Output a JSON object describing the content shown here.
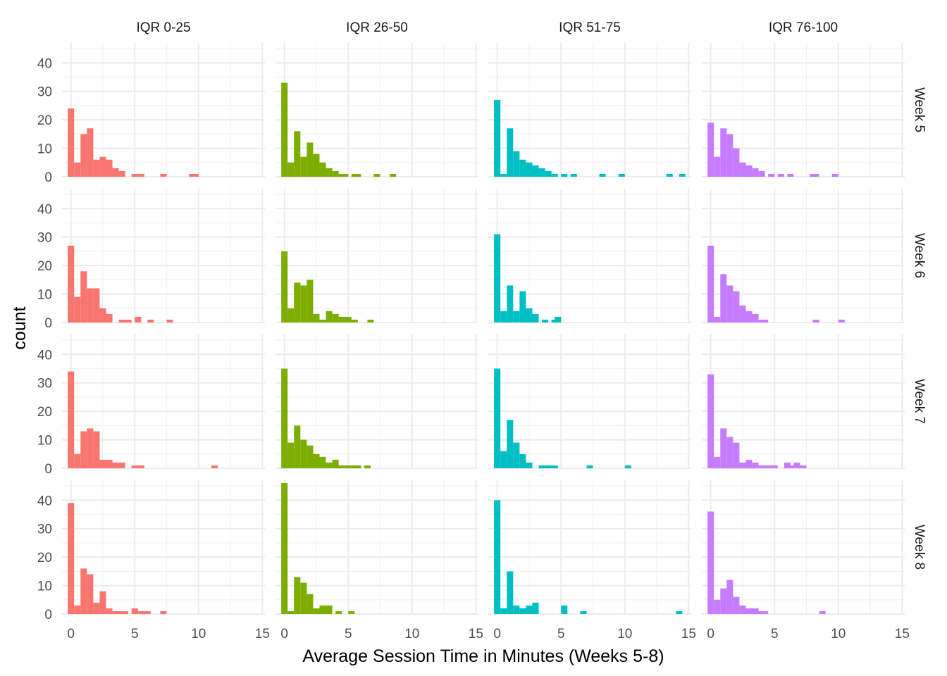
{
  "chart_data": {
    "type": "bar",
    "xlabel": "Average Session Time in Minutes (Weeks 5-8)",
    "ylabel": "count",
    "xlim": [
      -0.7,
      15.2
    ],
    "ylim": [
      0,
      47
    ],
    "x_ticks": [
      0,
      5,
      10,
      15
    ],
    "y_ticks": [
      0,
      10,
      20,
      30,
      40
    ],
    "bin_width": 0.5,
    "grid": true,
    "columns": [
      "IQR 0-25",
      "IQR 26-50",
      "IQR 51-75",
      "IQR 76-100"
    ],
    "rows": [
      "Week 5",
      "Week 6",
      "Week 7",
      "Week 8"
    ],
    "colors": [
      "#F8766D",
      "#7CAE00",
      "#00BFC4",
      "#C77CFF"
    ],
    "panels": [
      [
        {
          "counts": [
            24,
            5,
            15,
            17,
            6,
            7,
            6,
            3,
            2,
            0,
            0,
            0,
            0,
            0,
            0,
            0,
            0,
            0,
            0,
            1,
            0,
            0,
            0,
            0,
            0,
            0,
            0,
            0,
            0,
            0,
            0,
            0,
            0,
            0,
            0,
            0,
            0,
            0,
            0,
            0
          ]
        },
        {
          "counts": [
            33,
            5,
            16,
            7,
            12,
            8,
            5,
            3,
            2,
            0,
            0,
            1,
            0,
            0,
            0,
            0,
            0,
            1,
            0,
            0,
            0,
            0,
            0,
            0,
            0,
            0,
            0,
            0,
            0,
            0
          ]
        },
        {
          "counts": [
            27,
            1,
            17,
            9,
            6,
            5,
            4,
            3,
            2,
            1,
            0,
            0,
            1,
            0,
            0,
            0,
            0,
            0,
            0,
            0,
            0,
            0,
            0,
            0,
            0,
            0,
            0,
            1,
            0,
            1
          ]
        },
        {
          "counts": [
            19,
            7,
            17,
            15,
            10,
            5,
            4,
            3,
            2,
            0,
            0,
            1,
            0,
            0,
            0,
            0,
            1,
            0,
            0,
            0,
            0,
            0,
            0,
            0,
            0,
            0,
            0,
            0,
            0,
            0,
            0,
            0,
            0,
            0,
            0,
            0,
            0,
            0,
            0,
            0
          ]
        }
      ],
      [
        {
          "counts": [
            27,
            9,
            18,
            12,
            12,
            5,
            3,
            0,
            0,
            1,
            0,
            0,
            0,
            0,
            0,
            0,
            0,
            0,
            0,
            0,
            0,
            0,
            0,
            0,
            0,
            0,
            0,
            0,
            0,
            0,
            0,
            0,
            0,
            0,
            0,
            0,
            0,
            0,
            0,
            0
          ]
        },
        {
          "counts": [
            25,
            5,
            14,
            13,
            15,
            3,
            1,
            4,
            3,
            2,
            2,
            1,
            0,
            0,
            0,
            0,
            0,
            0,
            0,
            0,
            0,
            0,
            0,
            0,
            0,
            0,
            0,
            0,
            0,
            0
          ]
        },
        {
          "counts": [
            31,
            4,
            13,
            4,
            11,
            5,
            3,
            0,
            0,
            1,
            0,
            0,
            0,
            0,
            0,
            0,
            0,
            0,
            0,
            0,
            0,
            0,
            0,
            0,
            0,
            0,
            0,
            0,
            0,
            0
          ]
        },
        {
          "counts": [
            27,
            2,
            17,
            13,
            11,
            6,
            4,
            3,
            1,
            0,
            0,
            0,
            0,
            0,
            0,
            0,
            0,
            0,
            0,
            0,
            0,
            0,
            0,
            0,
            0,
            0,
            0,
            0,
            0,
            0,
            0,
            0,
            0,
            0,
            0,
            0,
            0,
            0,
            0,
            0
          ]
        }
      ],
      [
        {
          "counts": [
            34,
            5,
            13,
            14,
            13,
            3,
            3,
            2,
            2,
            0,
            0,
            0,
            0,
            0,
            0,
            0,
            0,
            0,
            0,
            0,
            0,
            0,
            0,
            0,
            0,
            0,
            0,
            0,
            0,
            0,
            0,
            0,
            0,
            0,
            0,
            0,
            0,
            0,
            0,
            0
          ]
        },
        {
          "counts": [
            35,
            9,
            15,
            10,
            8,
            5,
            4,
            2,
            3,
            1,
            1,
            1,
            0,
            1,
            0,
            0,
            0,
            0,
            0,
            0,
            0,
            0,
            0,
            0,
            0,
            0,
            0,
            0,
            0,
            0
          ]
        },
        {
          "counts": [
            35,
            6,
            17,
            9,
            5,
            2,
            0,
            0,
            1,
            1,
            0,
            0,
            0,
            0,
            0,
            0,
            0,
            0,
            0,
            0,
            0,
            0,
            0,
            0,
            0,
            0,
            0,
            0,
            0,
            0
          ]
        },
        {
          "counts": [
            33,
            4,
            14,
            11,
            9,
            2,
            3,
            2,
            1,
            1,
            1,
            0,
            2,
            1,
            0,
            0,
            0,
            0,
            0,
            0,
            0,
            0,
            0,
            0,
            0,
            0,
            0,
            0,
            0,
            0,
            0,
            0,
            0,
            0,
            0,
            0,
            0,
            0,
            0,
            0
          ]
        }
      ],
      [
        {
          "counts": [
            39,
            3,
            16,
            14,
            4,
            8,
            2,
            1,
            0,
            0,
            2,
            1,
            1,
            0,
            0,
            0,
            0,
            0,
            0,
            0,
            0,
            0,
            0,
            0,
            0,
            0,
            0,
            0,
            0,
            0,
            0,
            0,
            0,
            0,
            0,
            0,
            0,
            0,
            0,
            0
          ]
        },
        {
          "counts": [
            46,
            1,
            13,
            11,
            7,
            2,
            3,
            3,
            0,
            0,
            0,
            0,
            0,
            0,
            0,
            0,
            0,
            0,
            0,
            0,
            0,
            0,
            0,
            0,
            0,
            0,
            0,
            0,
            0,
            0
          ]
        },
        {
          "counts": [
            40,
            2,
            15,
            3,
            2,
            3,
            4,
            0,
            0,
            0,
            0,
            0,
            0,
            0,
            0,
            0,
            0,
            0,
            0,
            0,
            0,
            0,
            0,
            0,
            0,
            0,
            0,
            0,
            0,
            0
          ]
        },
        {
          "counts": [
            36,
            5,
            9,
            12,
            6,
            3,
            2,
            2,
            0,
            0,
            0,
            0,
            0,
            0,
            0,
            0,
            0,
            0,
            0,
            0,
            0,
            0,
            0,
            0,
            0,
            0,
            0,
            0,
            0,
            0,
            0,
            0,
            0,
            0,
            0,
            0,
            0,
            0,
            0,
            0
          ]
        }
      ]
    ],
    "extra_bars": [
      [
        [
          [
            5.0,
            1
          ],
          [
            5.5,
            1
          ],
          [
            7.25,
            1
          ],
          [
            9.75,
            1
          ]
        ],
        [
          [
            4.25,
            1
          ],
          [
            4.75,
            1
          ],
          [
            5.75,
            1
          ],
          [
            7.25,
            1
          ]
        ],
        [
          [
            5.25,
            1
          ],
          [
            8.25,
            1
          ],
          [
            9.75,
            1
          ]
        ],
        [
          [
            4.75,
            1
          ],
          [
            6.25,
            1
          ],
          [
            8.25,
            1
          ],
          [
            9.75,
            1
          ]
        ]
      ],
      [
        [
          [
            4.0,
            1
          ],
          [
            5.25,
            2
          ],
          [
            6.25,
            1
          ],
          [
            7.75,
            1
          ]
        ],
        [
          [
            5.25,
            1
          ],
          [
            6.75,
            1
          ]
        ],
        [
          [
            3.75,
            1
          ],
          [
            4.75,
            2
          ]
        ],
        [
          [
            4.25,
            1
          ],
          [
            8.25,
            1
          ],
          [
            10.25,
            1
          ]
        ]
      ],
      [
        [
          [
            3.25,
            2
          ],
          [
            3.75,
            2
          ],
          [
            5.0,
            1
          ],
          [
            5.5,
            1
          ],
          [
            11.25,
            1
          ]
        ],
        [
          [
            5.75,
            1
          ]
        ],
        [
          [
            3.5,
            1
          ],
          [
            4.0,
            1
          ],
          [
            7.25,
            1
          ],
          [
            10.25,
            1
          ]
        ],
        [
          [
            4.25,
            1
          ],
          [
            4.75,
            1
          ],
          [
            6.75,
            2
          ],
          [
            7.25,
            1
          ]
        ]
      ],
      [
        [
          [
            3.75,
            1
          ],
          [
            4.25,
            1
          ],
          [
            5.0,
            1
          ],
          [
            5.5,
            1
          ],
          [
            7.25,
            1
          ]
        ],
        [
          [
            4.25,
            1
          ],
          [
            5.25,
            1
          ]
        ],
        [
          [
            5.25,
            3
          ],
          [
            6.75,
            1
          ],
          [
            14.25,
            1
          ]
        ],
        [
          [
            3.25,
            2
          ],
          [
            3.75,
            1
          ],
          [
            4.25,
            1
          ],
          [
            8.75,
            1
          ]
        ]
      ]
    ]
  }
}
